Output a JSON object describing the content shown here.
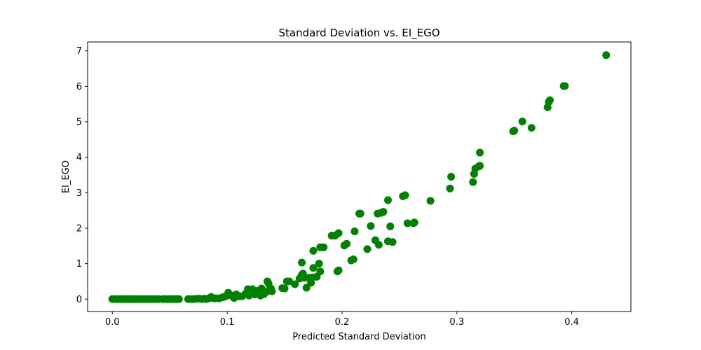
{
  "chart_data": {
    "type": "scatter",
    "title": "Standard Deviation vs. EI_EGO",
    "xlabel": "Predicted Standard Deviation",
    "ylabel": "EI_EGO",
    "xlim": [
      -0.0215,
      0.4515
    ],
    "ylim": [
      -0.35,
      7.25
    ],
    "xticks": [
      0.0,
      0.1,
      0.2,
      0.3,
      0.4
    ],
    "xtick_labels": [
      "0.0",
      "0.1",
      "0.2",
      "0.3",
      "0.4"
    ],
    "yticks": [
      0,
      1,
      2,
      3,
      4,
      5,
      6,
      7
    ],
    "ytick_labels": [
      "0",
      "1",
      "2",
      "3",
      "4",
      "5",
      "6",
      "7"
    ],
    "grid": false,
    "marker_color": "#008000",
    "series": [
      {
        "name": "",
        "points": [
          [
            0.0,
            0.0
          ],
          [
            0.003,
            0.0
          ],
          [
            0.005,
            0.0
          ],
          [
            0.008,
            0.0
          ],
          [
            0.01,
            0.0
          ],
          [
            0.012,
            0.0
          ],
          [
            0.014,
            0.0
          ],
          [
            0.016,
            0.0
          ],
          [
            0.018,
            0.0
          ],
          [
            0.02,
            0.0
          ],
          [
            0.022,
            0.0
          ],
          [
            0.025,
            0.0
          ],
          [
            0.027,
            0.0
          ],
          [
            0.029,
            0.0
          ],
          [
            0.031,
            0.0
          ],
          [
            0.034,
            0.0
          ],
          [
            0.036,
            0.0
          ],
          [
            0.038,
            0.0
          ],
          [
            0.04,
            0.0
          ],
          [
            0.044,
            0.0
          ],
          [
            0.046,
            0.0
          ],
          [
            0.048,
            0.0
          ],
          [
            0.05,
            0.0
          ],
          [
            0.052,
            0.0
          ],
          [
            0.054,
            0.0
          ],
          [
            0.056,
            0.0
          ],
          [
            0.058,
            0.0
          ],
          [
            0.066,
            0.0
          ],
          [
            0.069,
            0.0
          ],
          [
            0.071,
            0.0
          ],
          [
            0.074,
            0.01
          ],
          [
            0.076,
            0.01
          ],
          [
            0.078,
            0.0
          ],
          [
            0.08,
            0.01
          ],
          [
            0.082,
            0.0
          ],
          [
            0.084,
            0.02
          ],
          [
            0.086,
            0.06
          ],
          [
            0.088,
            0.02
          ],
          [
            0.09,
            0.02
          ],
          [
            0.093,
            0.02
          ],
          [
            0.096,
            0.05
          ],
          [
            0.098,
            0.07
          ],
          [
            0.1,
            0.1
          ],
          [
            0.101,
            0.18
          ],
          [
            0.104,
            0.1
          ],
          [
            0.106,
            0.03
          ],
          [
            0.108,
            0.13
          ],
          [
            0.11,
            0.08
          ],
          [
            0.113,
            0.08
          ],
          [
            0.116,
            0.15
          ],
          [
            0.118,
            0.28
          ],
          [
            0.119,
            0.1
          ],
          [
            0.121,
            0.18
          ],
          [
            0.122,
            0.28
          ],
          [
            0.124,
            0.13
          ],
          [
            0.126,
            0.18
          ],
          [
            0.127,
            0.24
          ],
          [
            0.129,
            0.1
          ],
          [
            0.13,
            0.3
          ],
          [
            0.132,
            0.14
          ],
          [
            0.134,
            0.2
          ],
          [
            0.135,
            0.5
          ],
          [
            0.136,
            0.44
          ],
          [
            0.137,
            0.27
          ],
          [
            0.138,
            0.3
          ],
          [
            0.139,
            0.22
          ],
          [
            0.148,
            0.31
          ],
          [
            0.15,
            0.3
          ],
          [
            0.152,
            0.5
          ],
          [
            0.154,
            0.5
          ],
          [
            0.159,
            0.42
          ],
          [
            0.163,
            0.58
          ],
          [
            0.165,
            0.68
          ],
          [
            0.165,
            1.03
          ],
          [
            0.166,
            0.72
          ],
          [
            0.167,
            0.6
          ],
          [
            0.169,
            0.32
          ],
          [
            0.171,
            0.6
          ],
          [
            0.173,
            0.46
          ],
          [
            0.174,
            0.61
          ],
          [
            0.175,
            0.88
          ],
          [
            0.175,
            1.36
          ],
          [
            0.178,
            0.63
          ],
          [
            0.18,
            1.0
          ],
          [
            0.181,
            0.78
          ],
          [
            0.181,
            1.46
          ],
          [
            0.184,
            1.46
          ],
          [
            0.191,
            1.79
          ],
          [
            0.194,
            1.79
          ],
          [
            0.196,
            0.78
          ],
          [
            0.197,
            1.86
          ],
          [
            0.197,
            0.81
          ],
          [
            0.202,
            1.51
          ],
          [
            0.204,
            1.56
          ],
          [
            0.208,
            1.09
          ],
          [
            0.21,
            1.12
          ],
          [
            0.211,
            1.91
          ],
          [
            0.215,
            2.41
          ],
          [
            0.216,
            2.41
          ],
          [
            0.222,
            1.41
          ],
          [
            0.225,
            2.06
          ],
          [
            0.229,
            1.66
          ],
          [
            0.231,
            2.41
          ],
          [
            0.232,
            1.53
          ],
          [
            0.234,
            2.43
          ],
          [
            0.236,
            2.46
          ],
          [
            0.24,
            2.79
          ],
          [
            0.24,
            1.63
          ],
          [
            0.242,
            2.05
          ],
          [
            0.244,
            1.61
          ],
          [
            0.253,
            2.9
          ],
          [
            0.255,
            2.93
          ],
          [
            0.257,
            2.14
          ],
          [
            0.262,
            2.14
          ],
          [
            0.263,
            2.16
          ],
          [
            0.277,
            2.77
          ],
          [
            0.294,
            3.12
          ],
          [
            0.295,
            3.45
          ],
          [
            0.314,
            3.3
          ],
          [
            0.315,
            3.53
          ],
          [
            0.316,
            3.68
          ],
          [
            0.319,
            3.74
          ],
          [
            0.32,
            3.76
          ],
          [
            0.32,
            4.13
          ],
          [
            0.349,
            4.73
          ],
          [
            0.35,
            4.75
          ],
          [
            0.357,
            5.01
          ],
          [
            0.365,
            4.83
          ],
          [
            0.379,
            5.41
          ],
          [
            0.38,
            5.56
          ],
          [
            0.381,
            5.61
          ],
          [
            0.393,
            6.01
          ],
          [
            0.394,
            6.01
          ],
          [
            0.43,
            6.88
          ]
        ]
      }
    ]
  }
}
